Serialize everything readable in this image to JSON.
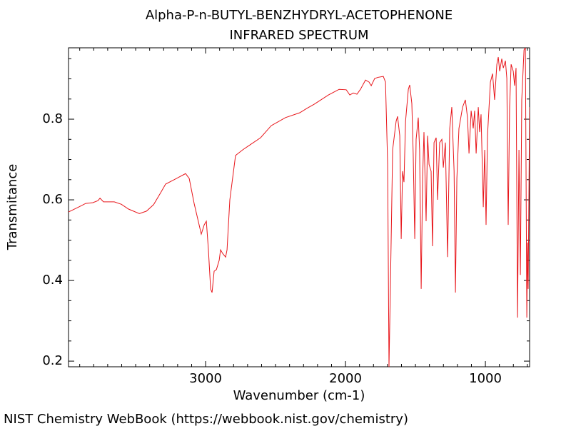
{
  "chart_data": {
    "type": "line",
    "title": "Alpha-P-n-BUTYL-BENZHYDRYL-ACETOPHENONE",
    "subtitle": "INFRARED SPECTRUM",
    "x_label": "Wavenumber (cm-1)",
    "y_label": "Transmitance",
    "source": "NIST Chemistry WebBook (https://webbook.nist.gov/chemistry)",
    "color": "#e8161b",
    "xlim": [
      3980,
      684
    ],
    "ylim": [
      0.186,
      0.977
    ],
    "xticks": [
      3000,
      2000,
      1000
    ],
    "yticks": [
      0.2,
      0.4,
      0.6,
      0.8
    ],
    "xminorticks": [
      3900,
      3800,
      3700,
      3600,
      3500,
      3400,
      3300,
      3200,
      3100,
      2900,
      2800,
      2700,
      2600,
      2500,
      2400,
      2300,
      2200,
      2100,
      1900,
      1800,
      1700,
      1600,
      1500,
      1400,
      1300,
      1200,
      1100,
      900,
      800,
      700
    ],
    "yminorticks": [
      0.25,
      0.3,
      0.35,
      0.45,
      0.5,
      0.55,
      0.65,
      0.7,
      0.75,
      0.85,
      0.9,
      0.95
    ],
    "x": [
      3980,
      3908,
      3857,
      3806,
      3770,
      3755,
      3730,
      3653,
      3602,
      3551,
      3474,
      3423,
      3372,
      3321,
      3286,
      3219,
      3143,
      3117,
      3082,
      3031,
      3010,
      2995,
      2980,
      2964,
      2954,
      2939,
      2923,
      2903,
      2893,
      2878,
      2857,
      2847,
      2827,
      2786,
      2735,
      2684,
      2607,
      2531,
      2429,
      2327,
      2276,
      2224,
      2122,
      2046,
      1995,
      1969,
      1944,
      1918,
      1893,
      1857,
      1832,
      1816,
      1791,
      1765,
      1730,
      1714,
      1699,
      1689,
      1679,
      1663,
      1638,
      1628,
      1612,
      1602,
      1592,
      1582,
      1571,
      1551,
      1541,
      1526,
      1516,
      1505,
      1495,
      1480,
      1470,
      1459,
      1449,
      1439,
      1424,
      1413,
      1403,
      1388,
      1378,
      1367,
      1352,
      1342,
      1327,
      1311,
      1301,
      1286,
      1270,
      1255,
      1240,
      1224,
      1214,
      1204,
      1189,
      1163,
      1143,
      1128,
      1117,
      1102,
      1087,
      1077,
      1066,
      1051,
      1041,
      1031,
      1015,
      1005,
      995,
      985,
      964,
      949,
      934,
      918,
      908,
      898,
      883,
      872,
      857,
      847,
      837,
      827,
      816,
      801,
      791,
      781,
      770,
      760,
      750,
      740,
      724,
      714,
      704,
      699,
      694,
      684
    ],
    "values": [
      0.57,
      0.582,
      0.591,
      0.593,
      0.598,
      0.604,
      0.595,
      0.595,
      0.589,
      0.577,
      0.566,
      0.572,
      0.588,
      0.618,
      0.639,
      0.651,
      0.665,
      0.653,
      0.591,
      0.515,
      0.538,
      0.547,
      0.476,
      0.379,
      0.37,
      0.423,
      0.427,
      0.45,
      0.476,
      0.467,
      0.458,
      0.476,
      0.6,
      0.71,
      0.724,
      0.736,
      0.754,
      0.784,
      0.804,
      0.816,
      0.827,
      0.837,
      0.86,
      0.874,
      0.873,
      0.86,
      0.865,
      0.862,
      0.874,
      0.897,
      0.892,
      0.883,
      0.901,
      0.904,
      0.906,
      0.892,
      0.688,
      0.186,
      0.388,
      0.724,
      0.795,
      0.807,
      0.759,
      0.503,
      0.671,
      0.644,
      0.795,
      0.874,
      0.885,
      0.839,
      0.715,
      0.503,
      0.75,
      0.804,
      0.724,
      0.379,
      0.653,
      0.768,
      0.547,
      0.759,
      0.688,
      0.671,
      0.485,
      0.742,
      0.754,
      0.6,
      0.742,
      0.75,
      0.68,
      0.742,
      0.458,
      0.777,
      0.83,
      0.671,
      0.37,
      0.653,
      0.777,
      0.83,
      0.848,
      0.804,
      0.715,
      0.821,
      0.777,
      0.821,
      0.715,
      0.83,
      0.768,
      0.812,
      0.582,
      0.724,
      0.538,
      0.759,
      0.892,
      0.913,
      0.848,
      0.936,
      0.954,
      0.919,
      0.95,
      0.927,
      0.945,
      0.901,
      0.538,
      0.83,
      0.936,
      0.919,
      0.883,
      0.927,
      0.308,
      0.724,
      0.414,
      0.848,
      0.972,
      0.977,
      0.308,
      0.494,
      0.379,
      0.83
    ]
  }
}
